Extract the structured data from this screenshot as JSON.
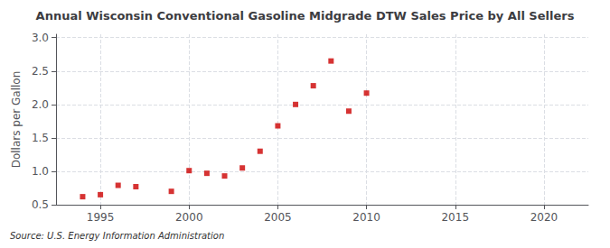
{
  "chart_data": {
    "type": "scatter",
    "title": "Annual Wisconsin Conventional Gasoline Midgrade DTW Sales Price by All Sellers",
    "ylabel": "Dollars per Gallon",
    "annotation": "Source: U.S. Energy Information Administration",
    "x": [
      1994,
      1995,
      1996,
      1997,
      1999,
      2000,
      2001,
      2002,
      2003,
      2004,
      2005,
      2006,
      2007,
      2008,
      2009,
      2010
    ],
    "values": [
      0.62,
      0.65,
      0.79,
      0.77,
      0.7,
      1.01,
      0.97,
      0.93,
      1.05,
      1.3,
      1.68,
      2.0,
      2.28,
      2.65,
      1.9,
      2.17
    ],
    "color": "#cc0000",
    "marker": "square",
    "xlim": [
      1992.5,
      2022.5
    ],
    "xticks": [
      1995,
      2000,
      2005,
      2010,
      2015,
      2020
    ],
    "ylim": [
      0.5,
      3.05
    ],
    "yticks": [
      0.5,
      {
        "value": 1,
        "label": "1.0"
      },
      1.5,
      {
        "value": 2,
        "label": "2.0"
      },
      2.5,
      {
        "value": 3,
        "label": "3.0"
      }
    ],
    "grid": true
  }
}
